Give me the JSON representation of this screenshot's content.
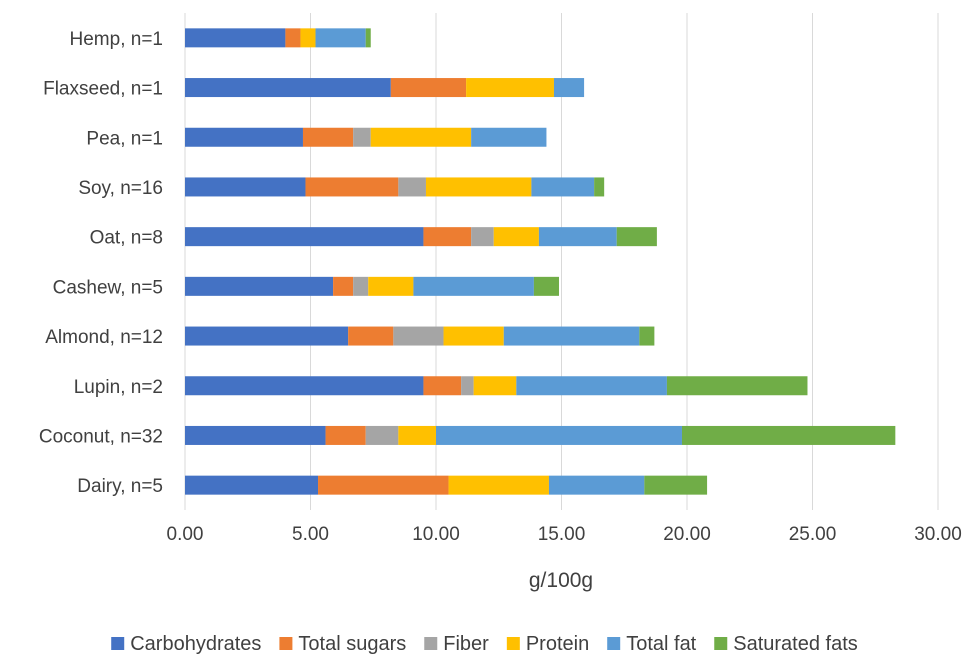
{
  "chart_data": {
    "type": "bar",
    "orientation": "horizontal",
    "stacked": true,
    "categories": [
      "Hemp, n=1",
      "Flaxseed, n=1",
      "Pea, n=1",
      "Soy, n=16",
      "Oat, n=8",
      "Cashew, n=5",
      "Almond, n=12",
      "Lupin, n=2",
      "Coconut, n=32",
      "Dairy, n=5"
    ],
    "series": [
      {
        "name": "Carbohydrates",
        "color": "#4472C4",
        "values": [
          4.0,
          8.2,
          4.7,
          4.8,
          9.5,
          5.9,
          6.5,
          9.5,
          5.6,
          5.3
        ]
      },
      {
        "name": "Total sugars",
        "color": "#ED7D31",
        "values": [
          0.6,
          3.0,
          2.0,
          3.7,
          1.9,
          0.8,
          1.8,
          1.5,
          1.6,
          5.2
        ]
      },
      {
        "name": "Fiber",
        "color": "#A5A5A5",
        "values": [
          0.0,
          0.0,
          0.7,
          1.1,
          0.9,
          0.6,
          2.0,
          0.5,
          1.3,
          0.0
        ]
      },
      {
        "name": "Protein",
        "color": "#FFC000",
        "values": [
          0.6,
          3.5,
          4.0,
          4.2,
          1.8,
          1.8,
          2.4,
          1.7,
          1.5,
          4.0
        ]
      },
      {
        "name": "Total fat",
        "color": "#5B9BD5",
        "values": [
          2.0,
          1.2,
          3.0,
          2.5,
          3.1,
          4.8,
          5.4,
          6.0,
          9.8,
          3.8
        ]
      },
      {
        "name": "Saturated fats",
        "color": "#70AD47",
        "values": [
          0.2,
          0.0,
          0.0,
          0.4,
          1.6,
          1.0,
          0.6,
          5.6,
          8.5,
          2.5
        ]
      }
    ],
    "xlabel": "g/100g",
    "ylabel": "",
    "xlim": [
      0,
      30
    ],
    "xticks": [
      "0.00",
      "5.00",
      "10.00",
      "15.00",
      "20.00",
      "25.00",
      "30.00"
    ],
    "grid": "vertical",
    "legend": "bottom"
  }
}
